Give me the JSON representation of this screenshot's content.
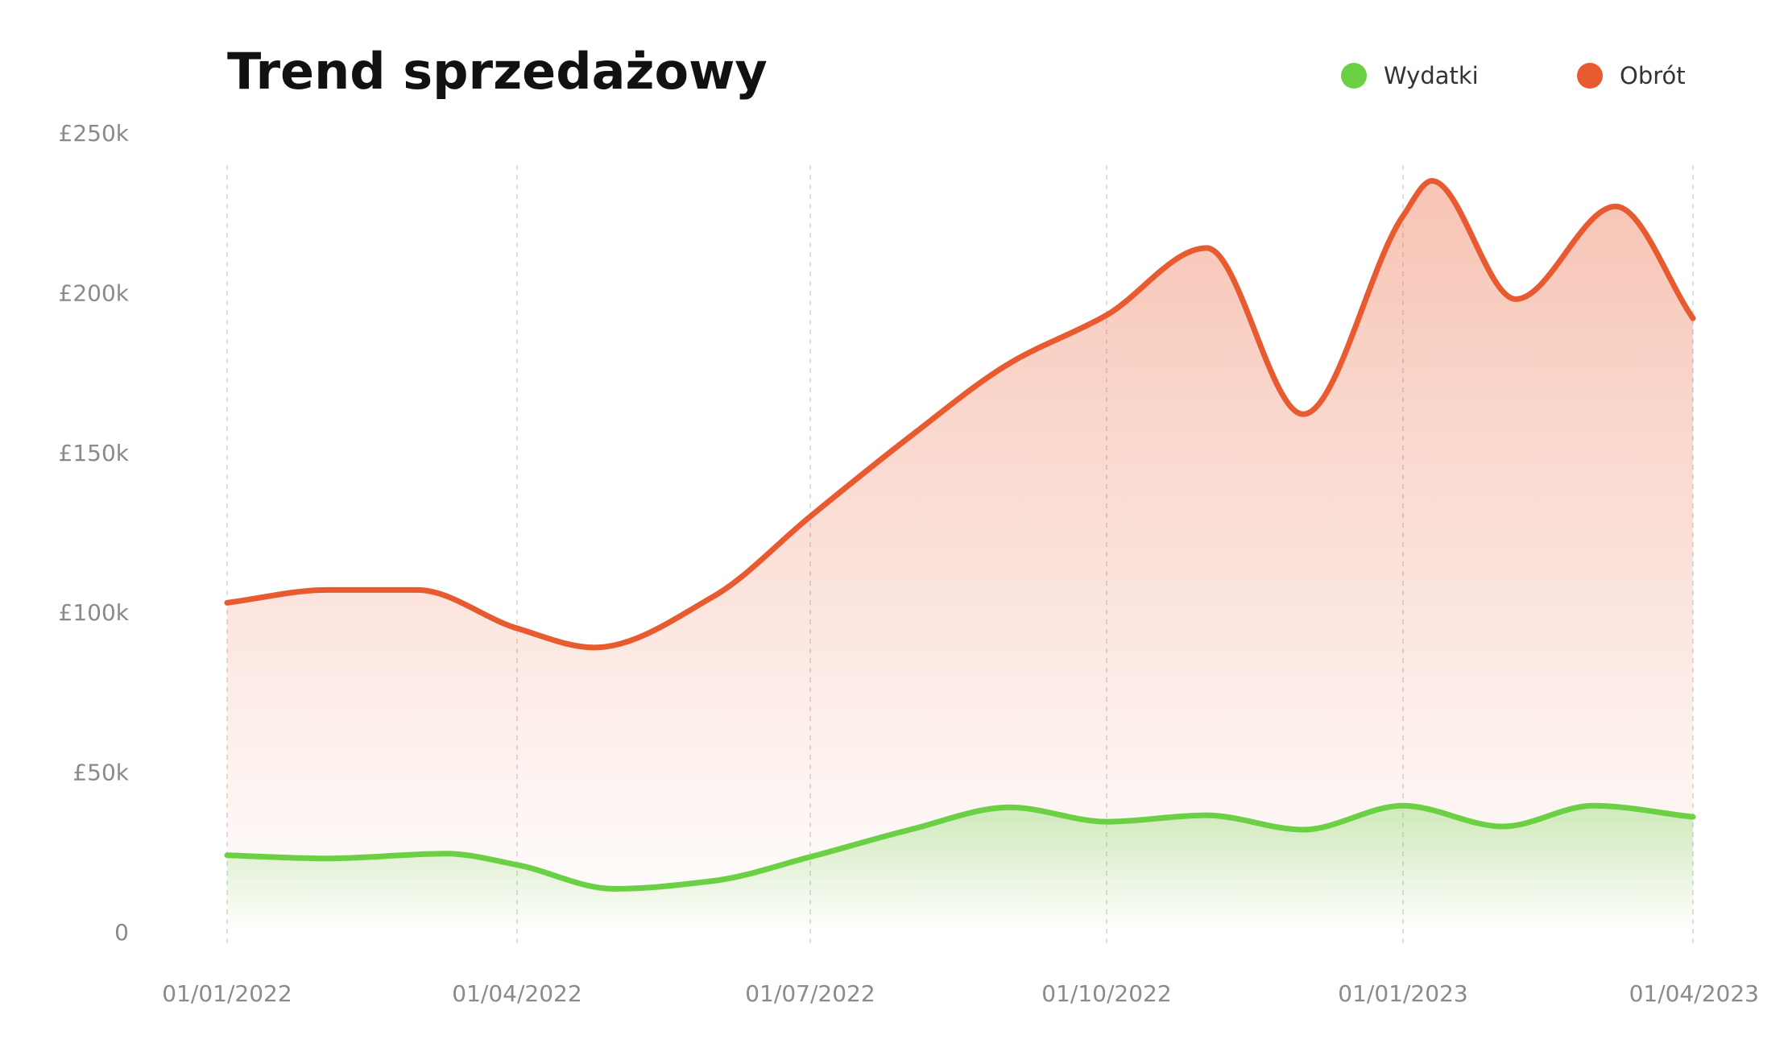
{
  "chart_data": {
    "type": "area",
    "title": "Trend sprzedażowy",
    "xlabel": "",
    "ylabel": "",
    "x_ticks": [
      "01/01/2022",
      "01/04/2022",
      "01/07/2022",
      "01/10/2022",
      "01/01/2023",
      "01/04/2023"
    ],
    "y_ticks": [
      "0",
      "£50k",
      "£100k",
      "£150k",
      "£200k",
      "£250k"
    ],
    "y_tick_values": [
      0,
      50000,
      100000,
      150000,
      200000,
      250000
    ],
    "ylim": [
      0,
      250000
    ],
    "xlim": [
      "2022-01-01",
      "2023-04-01"
    ],
    "grid": "vertical dashed",
    "legend": "top-right",
    "series": [
      {
        "name": "Wydatki",
        "color": "#6cd044",
        "x": [
          "2022-01-01",
          "2022-02-01",
          "2022-03-10",
          "2022-04-01",
          "2022-05-01",
          "2022-06-01",
          "2022-07-01",
          "2022-08-01",
          "2022-09-01",
          "2022-10-01",
          "2022-11-01",
          "2022-12-01",
          "2023-01-01",
          "2023-02-01",
          "2023-03-01",
          "2023-04-01"
        ],
        "values": [
          24000,
          23000,
          24500,
          21000,
          13500,
          16000,
          23500,
          32000,
          39000,
          34500,
          36500,
          32000,
          39500,
          33000,
          39500,
          36000
        ]
      },
      {
        "name": "Obrót",
        "color": "#e85a30",
        "x": [
          "2022-01-01",
          "2022-02-01",
          "2022-03-01",
          "2022-04-01",
          "2022-04-25",
          "2022-06-01",
          "2022-07-01",
          "2022-08-01",
          "2022-09-01",
          "2022-10-01",
          "2022-11-01",
          "2022-12-01",
          "2023-01-01",
          "2023-01-10",
          "2023-02-05",
          "2023-03-08",
          "2023-04-01"
        ],
        "values": [
          103000,
          107000,
          107000,
          95000,
          89000,
          105000,
          130000,
          155000,
          178000,
          193000,
          214000,
          162000,
          224000,
          235000,
          198000,
          227000,
          192000
        ]
      }
    ]
  }
}
